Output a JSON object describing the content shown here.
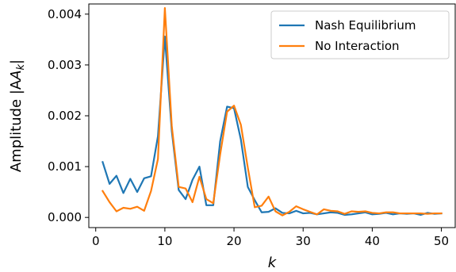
{
  "chart_data": {
    "type": "line",
    "xlabel": "k",
    "ylabel_prefix": "Amplitude |A",
    "ylabel_sub": "k",
    "ylabel_suffix": "|",
    "xlim": [
      -1,
      52
    ],
    "ylim": [
      -0.0002,
      0.0042
    ],
    "xticks": [
      0,
      10,
      20,
      30,
      40,
      50
    ],
    "yticks": [
      0.0,
      0.001,
      0.002,
      0.003,
      0.004
    ],
    "ytick_labels": [
      "0.000",
      "0.001",
      "0.002",
      "0.003",
      "0.004"
    ],
    "grid": false,
    "legend_position": "top-right",
    "x": [
      1,
      2,
      3,
      4,
      5,
      6,
      7,
      8,
      9,
      10,
      11,
      12,
      13,
      14,
      15,
      16,
      17,
      18,
      19,
      20,
      21,
      22,
      23,
      24,
      25,
      26,
      27,
      28,
      29,
      30,
      31,
      32,
      33,
      34,
      35,
      36,
      37,
      38,
      39,
      40,
      41,
      42,
      43,
      44,
      45,
      46,
      47,
      48,
      49,
      50
    ],
    "series": [
      {
        "name": "Nash Equilibrium",
        "color": "#1f77b4",
        "values": [
          0.00109,
          0.00066,
          0.00082,
          0.00048,
          0.00076,
          0.0005,
          0.00077,
          0.00081,
          0.0016,
          0.00356,
          0.0017,
          0.00054,
          0.00036,
          0.00074,
          0.001,
          0.00024,
          0.00024,
          0.0015,
          0.00218,
          0.00215,
          0.00153,
          0.0006,
          0.00034,
          0.0001,
          0.00011,
          0.00018,
          9e-05,
          8e-05,
          0.00013,
          8e-05,
          9e-05,
          6e-05,
          8e-05,
          0.0001,
          9e-05,
          5e-05,
          6e-05,
          8e-05,
          0.0001,
          6e-05,
          7e-05,
          9e-05,
          6e-05,
          8e-05,
          7e-05,
          8e-05,
          5e-05,
          9e-05,
          7e-05,
          8e-05
        ]
      },
      {
        "name": "No Interaction",
        "color": "#ff7f0e",
        "values": [
          0.00052,
          0.0003,
          0.00012,
          0.00019,
          0.00017,
          0.00021,
          0.00013,
          0.00052,
          0.00115,
          0.00412,
          0.0018,
          0.0006,
          0.00057,
          0.0003,
          0.0008,
          0.00036,
          0.00028,
          0.00124,
          0.00208,
          0.0022,
          0.00182,
          0.00098,
          0.0002,
          0.00023,
          0.00041,
          0.00012,
          4e-05,
          0.00011,
          0.00022,
          0.00016,
          0.00011,
          6e-05,
          0.00016,
          0.00013,
          0.00012,
          7e-05,
          0.00012,
          0.00011,
          0.00012,
          9e-05,
          8e-05,
          0.0001,
          0.0001,
          8e-05,
          8e-05,
          8e-05,
          8e-05,
          7e-05,
          8e-05,
          8e-05
        ]
      }
    ]
  }
}
